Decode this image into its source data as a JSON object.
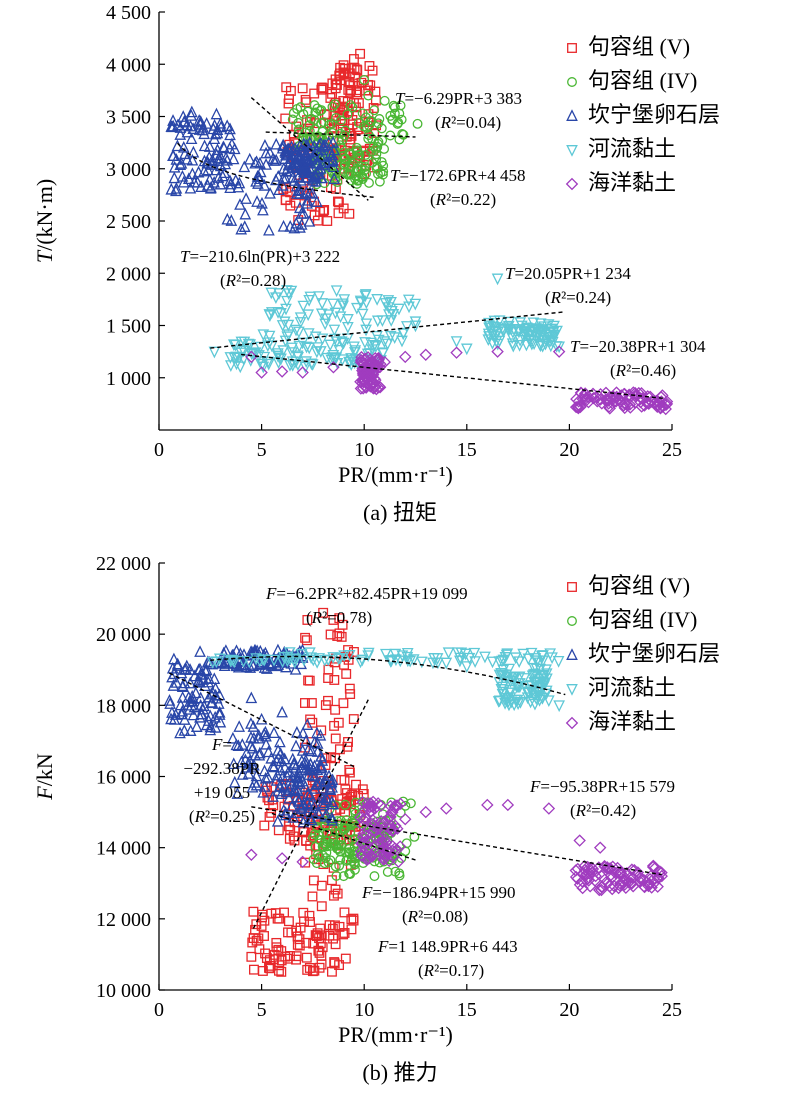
{
  "chart_data": [
    {
      "type": "scatter",
      "caption": "(a) 扭矩",
      "xlabel": "PR/(mm·r⁻¹)",
      "ylabel": "T/(kN·m)",
      "xlim": [
        0,
        25
      ],
      "ylim": [
        500,
        4500
      ],
      "xticks": [
        0,
        5,
        10,
        15,
        20,
        25
      ],
      "yticks": [
        {
          "v": 1000,
          "label": "1 000"
        },
        {
          "v": 1500,
          "label": "1 500"
        },
        {
          "v": 2000,
          "label": "2 000"
        },
        {
          "v": 2500,
          "label": "2 500"
        },
        {
          "v": 3000,
          "label": "3 000"
        },
        {
          "v": 3500,
          "label": "3 500"
        },
        {
          "v": 4000,
          "label": "4 000"
        },
        {
          "v": 4500,
          "label": "4 500"
        }
      ],
      "legend_position": "top-right",
      "series": [
        {
          "name": "句容组 (V)",
          "marker": "square",
          "color": "#e8282b",
          "clusters": [
            [
              6.0,
              9.8,
              2500,
              3780
            ],
            [
              8.4,
              10.6,
              3000,
              4000
            ]
          ],
          "points": [
            [
              6.2,
              3780
            ],
            [
              7.0,
              3770
            ],
            [
              8.0,
              3770
            ],
            [
              9.0,
              3900
            ],
            [
              9.5,
              4050
            ],
            [
              9.8,
              4100
            ],
            [
              10.2,
              3750
            ],
            [
              8.2,
              2500
            ],
            [
              9.0,
              2620
            ],
            [
              10.0,
              2950
            ]
          ]
        },
        {
          "name": "句容组 (IV)",
          "marker": "circle",
          "color": "#4ab734",
          "clusters": [
            [
              6.5,
              12.0,
              3200,
              3620
            ],
            [
              7.5,
              11.0,
              2850,
              3200
            ]
          ],
          "points": [
            [
              10.0,
              3850
            ],
            [
              10.2,
              3700
            ],
            [
              11.0,
              3650
            ],
            [
              12.6,
              3430
            ],
            [
              7.6,
              2900
            ]
          ]
        },
        {
          "name": "坎宁堡卵石层",
          "marker": "triangle-up",
          "color": "#2946a8",
          "clusters": [
            [
              0.6,
              3.5,
              2780,
              3520
            ],
            [
              3.3,
              7.8,
              2400,
              3250
            ],
            [
              6.0,
              8.6,
              2900,
              3250
            ]
          ],
          "points": [
            [
              0.6,
              2800
            ],
            [
              0.6,
              3400
            ],
            [
              1.6,
              3540
            ],
            [
              2.8,
              3520
            ]
          ]
        },
        {
          "name": "河流黏土",
          "marker": "triangle-down",
          "color": "#5ec8d6",
          "clusters": [
            [
              5.0,
              12.5,
              1300,
              1840
            ],
            [
              3.4,
              11.0,
              1100,
              1350
            ],
            [
              16.0,
              19.5,
              1300,
              1550
            ]
          ],
          "points": [
            [
              2.7,
              1250
            ],
            [
              3.5,
              1120
            ],
            [
              12.5,
              1500
            ],
            [
              14.5,
              1350
            ],
            [
              15.0,
              1280
            ],
            [
              16.5,
              1950
            ],
            [
              19.5,
              1300
            ]
          ]
        },
        {
          "name": "海洋黏土",
          "marker": "diamond",
          "color": "#a03cbf",
          "clusters": [
            [
              9.8,
              10.8,
              880,
              1200
            ],
            [
              20.3,
              24.8,
              700,
              860
            ]
          ],
          "points": [
            [
              4.5,
              1200
            ],
            [
              5.0,
              1050
            ],
            [
              6.0,
              1060
            ],
            [
              7.0,
              1050
            ],
            [
              8.5,
              1100
            ],
            [
              11.0,
              1150
            ],
            [
              12.0,
              1200
            ],
            [
              13.0,
              1220
            ],
            [
              14.5,
              1240
            ],
            [
              16.5,
              1250
            ],
            [
              19.5,
              1250
            ]
          ]
        }
      ],
      "fits": [
        {
          "kind": "linear",
          "a": -6.29,
          "b": 3383,
          "x0": 5.2,
          "x1": 12.5,
          "eq": "T=−6.29PR+3 383",
          "r2": "(R²=0.04)"
        },
        {
          "kind": "linear",
          "a": -172.6,
          "b": 4458,
          "x0": 4.5,
          "x1": 10.2,
          "eq": "T=−172.6PR+4 458",
          "r2": "(R²=0.22)"
        },
        {
          "kind": "log",
          "a": -210.6,
          "b": 3222,
          "x0": 0.9,
          "x1": 10.5,
          "eq": "T=−210.6ln(PR)+3 222",
          "r2": "(R²=0.28)"
        },
        {
          "kind": "linear",
          "a": 20.05,
          "b": 1234,
          "x0": 2.5,
          "x1": 19.8,
          "eq": "T=20.05PR+1 234",
          "r2": "(R²=0.24)"
        },
        {
          "kind": "linear",
          "a": -20.38,
          "b": 1304,
          "x0": 4.0,
          "x1": 24.6,
          "eq": "T=−20.38PR+1 304",
          "r2": "(R²=0.46)"
        }
      ]
    },
    {
      "type": "scatter",
      "caption": "(b) 推力",
      "xlabel": "PR/(mm·r⁻¹)",
      "ylabel": "F/kN",
      "xlim": [
        0,
        25
      ],
      "ylim": [
        10000,
        22000
      ],
      "xticks": [
        0,
        5,
        10,
        15,
        20,
        25
      ],
      "yticks": [
        {
          "v": 10000,
          "label": "10 000"
        },
        {
          "v": 12000,
          "label": "12 000"
        },
        {
          "v": 14000,
          "label": "14 000"
        },
        {
          "v": 16000,
          "label": "16 000"
        },
        {
          "v": 18000,
          "label": "18 000"
        },
        {
          "v": 20000,
          "label": "20 000"
        },
        {
          "v": 22000,
          "label": "22 000"
        }
      ],
      "legend_position": "top-right",
      "series": [
        {
          "name": "句容组 (V)",
          "marker": "square",
          "color": "#e8282b",
          "clusters": [
            [
              4.5,
              9.5,
              10500,
              12200
            ],
            [
              7.0,
              9.5,
              12000,
              20500
            ],
            [
              5.0,
              10.0,
              14200,
              15800
            ]
          ],
          "points": [
            [
              8.0,
              20600
            ],
            [
              8.5,
              20400
            ],
            [
              9.5,
              19500
            ],
            [
              4.6,
              12200
            ],
            [
              5.0,
              11800
            ]
          ]
        },
        {
          "name": "句容组 (IV)",
          "marker": "circle",
          "color": "#4ab734",
          "clusters": [
            [
              8.0,
              12.5,
              13200,
              15300
            ],
            [
              7.5,
              11.5,
              13500,
              14800
            ]
          ],
          "points": [
            [
              9.0,
              13200
            ],
            [
              10.5,
              13200
            ],
            [
              12.0,
              13900
            ]
          ]
        },
        {
          "name": "坎宁堡卵石层",
          "marker": "triangle-up",
          "color": "#2946a8",
          "clusters": [
            [
              0.5,
              3.0,
              17200,
              19300
            ],
            [
              3.0,
              7.0,
              19000,
              19550
            ],
            [
              3.5,
              8.0,
              15500,
              17500
            ],
            [
              5.5,
              8.5,
              14700,
              16500
            ]
          ],
          "points": [
            [
              2.0,
              19500
            ],
            [
              4.5,
              18200
            ],
            [
              6.0,
              17800
            ],
            [
              5.0,
              17600
            ]
          ]
        },
        {
          "name": "河流黏土",
          "marker": "triangle-down",
          "color": "#5ec8d6",
          "clusters": [
            [
              2.5,
              19.5,
              19200,
              19500
            ],
            [
              16.5,
              19.0,
              18000,
              19100
            ]
          ],
          "points": [
            [
              14.0,
              19200
            ],
            [
              15.0,
              19100
            ],
            [
              19.5,
              18000
            ]
          ]
        },
        {
          "name": "海洋黏土",
          "marker": "diamond",
          "color": "#a03cbf",
          "clusters": [
            [
              9.8,
              11.8,
              13600,
              15300
            ],
            [
              20.3,
              24.5,
              12800,
              13500
            ]
          ],
          "points": [
            [
              4.5,
              13800
            ],
            [
              6.0,
              13700
            ],
            [
              7.0,
              13600
            ],
            [
              12.0,
              14800
            ],
            [
              13.0,
              15000
            ],
            [
              14.0,
              15100
            ],
            [
              16.0,
              15200
            ],
            [
              17.0,
              15200
            ],
            [
              19.0,
              15100
            ],
            [
              20.5,
              14200
            ],
            [
              21.5,
              14000
            ],
            [
              24.5,
              13200
            ]
          ]
        }
      ],
      "fits": [
        {
          "kind": "quad",
          "a": -6.2,
          "b": 82.45,
          "c": 19099,
          "x0": 2.5,
          "x1": 19.8,
          "eq": "F=−6.2PR²+82.45PR+19 099",
          "r2": "(R²=0.78)"
        },
        {
          "kind": "linear",
          "a": -292.38,
          "b": 19055,
          "x0": 0.5,
          "x1": 9.5,
          "eq": [
            "F=",
            "−292.38PR",
            "+19 055"
          ],
          "r2": "(R²=0.25)"
        },
        {
          "kind": "linear",
          "a": -95.38,
          "b": 15579,
          "x0": 4.5,
          "x1": 24.5,
          "eq": "F=−95.38PR+15 579",
          "r2": "(R²=0.42)"
        },
        {
          "kind": "linear",
          "a": -186.94,
          "b": 15990,
          "x0": 5.5,
          "x1": 12.5,
          "eq": "F=−186.94PR+15 990",
          "r2": "(R²=0.08)"
        },
        {
          "kind": "linear",
          "a": 1148.9,
          "b": 6443,
          "x0": 4.6,
          "x1": 10.2,
          "eq": "F=1 148.9PR+6 443",
          "r2": "(R²=0.17)"
        }
      ]
    }
  ]
}
